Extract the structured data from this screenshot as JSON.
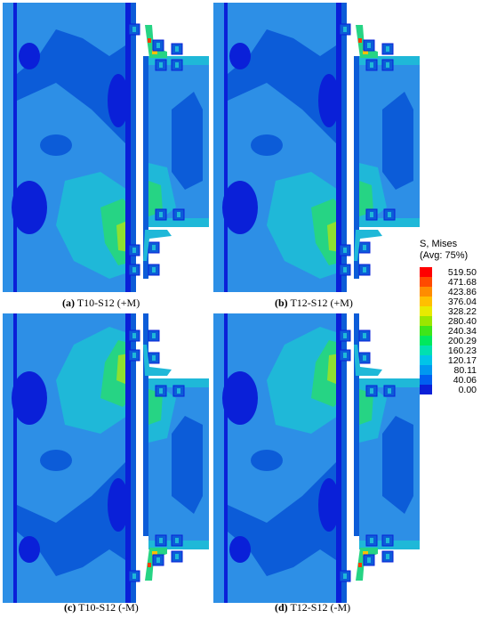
{
  "panels": [
    {
      "letter": "(a)",
      "label": "T10-S12 (+M)"
    },
    {
      "letter": "(b)",
      "label": "T12-S12 (+M)"
    },
    {
      "letter": "(c)",
      "label": "T10-S12 (-M)"
    },
    {
      "letter": "(d)",
      "label": "T12-S12 (-M)"
    }
  ],
  "legend": {
    "title_line1": "S, Mises",
    "title_line2": "(Avg: 75%)",
    "levels": [
      {
        "value": "519.50",
        "color": "#ff0000"
      },
      {
        "value": "471.68",
        "color": "#ff4a00"
      },
      {
        "value": "423.86",
        "color": "#ff8c00"
      },
      {
        "value": "376.04",
        "color": "#ffbf00"
      },
      {
        "value": "328.22",
        "color": "#e8ea00"
      },
      {
        "value": "280.40",
        "color": "#9ae600"
      },
      {
        "value": "240.34",
        "color": "#3ee51a"
      },
      {
        "value": "200.29",
        "color": "#00e85e"
      },
      {
        "value": "160.23",
        "color": "#00e0b0"
      },
      {
        "value": "120.17",
        "color": "#00c4e8"
      },
      {
        "value": "80.11",
        "color": "#0098f0"
      },
      {
        "value": "40.06",
        "color": "#0060f0"
      },
      {
        "value": "0.00",
        "color": "#0a20d8"
      }
    ]
  },
  "palette": {
    "dark_blue": "#0a20d8",
    "mid_blue": "#0c5cd8",
    "light_blue": "#2d8fe6",
    "cyan": "#1fb8d8",
    "green": "#26d484",
    "yellow_green": "#8fe030",
    "hotspot": "#ff3a00"
  }
}
